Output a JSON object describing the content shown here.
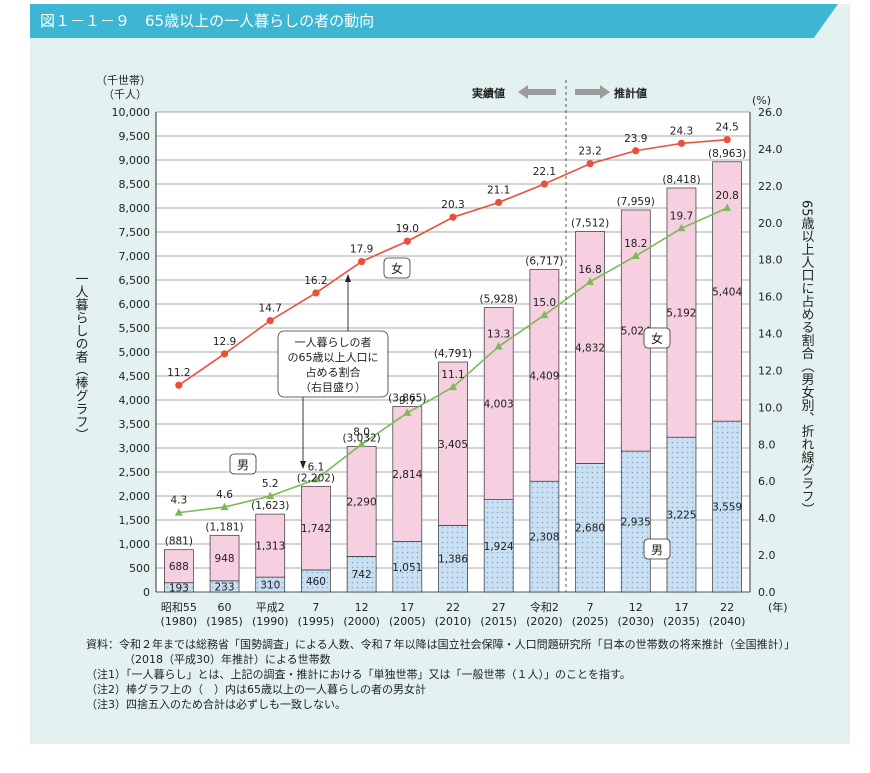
{
  "title": "図１－１－９　65歳以上の一人暮らしの者の動向",
  "chart_data": {
    "type": "bar",
    "categories": [
      {
        "era": "昭和55",
        "year": "(1980)"
      },
      {
        "era": "60",
        "year": "(1985)"
      },
      {
        "era": "平成2",
        "year": "(1990)"
      },
      {
        "era": "7",
        "year": "(1995)"
      },
      {
        "era": "12",
        "year": "(2000)"
      },
      {
        "era": "17",
        "year": "(2005)"
      },
      {
        "era": "22",
        "year": "(2010)"
      },
      {
        "era": "27",
        "year": "(2015)"
      },
      {
        "era": "令和2",
        "year": "(2020)"
      },
      {
        "era": "7",
        "year": "(2025)"
      },
      {
        "era": "12",
        "year": "(2030)"
      },
      {
        "era": "17",
        "year": "(2035)"
      },
      {
        "era": "22",
        "year": "(2040)"
      }
    ],
    "series": [
      {
        "name": "男",
        "values": [
          193,
          233,
          310,
          460,
          742,
          1051,
          1386,
          1924,
          2308,
          2680,
          2935,
          3225,
          3559
        ]
      },
      {
        "name": "女",
        "values": [
          688,
          948,
          1313,
          1742,
          2290,
          2814,
          3405,
          4003,
          4409,
          4832,
          5024,
          5192,
          5404
        ]
      }
    ],
    "total_labels": [
      "(881)",
      "(1,181)",
      "(1,623)",
      "(2,202)",
      "(3,032)",
      "(3,865)",
      "(4,791)",
      "(5,928)",
      "(6,717)",
      "(7,512)",
      "(7,959)",
      "(8,418)",
      "(8,963)"
    ],
    "male_labels": [
      "193",
      "233",
      "310",
      "460",
      "742",
      "1,051",
      "1,386",
      "1,924",
      "2,308",
      "2,680",
      "2,935",
      "3,225",
      "3,559"
    ],
    "female_labels": [
      "688",
      "948",
      "1,313",
      "1,742",
      "2,290",
      "2,814",
      "3,405",
      "4,003",
      "4,409",
      "4,832",
      "5,024",
      "5,192",
      "5,404"
    ],
    "line_series": [
      {
        "name": "女",
        "color": "#e8503a",
        "values": [
          11.2,
          12.9,
          14.7,
          16.2,
          17.9,
          19.0,
          20.3,
          21.1,
          22.1,
          23.2,
          23.9,
          24.3,
          24.5
        ]
      },
      {
        "name": "男",
        "color": "#7cb957",
        "values": [
          4.3,
          4.6,
          5.2,
          6.1,
          8.0,
          9.7,
          11.1,
          13.3,
          15.0,
          16.8,
          18.2,
          19.7,
          20.8
        ]
      }
    ],
    "left_axis": {
      "unit1": "（千世帯）",
      "unit2": "（千人）",
      "ylim": [
        0,
        10000
      ],
      "ticks": [
        "0",
        "500",
        "1,000",
        "1,500",
        "2,000",
        "2,500",
        "3,000",
        "3,500",
        "4,000",
        "4,500",
        "5,000",
        "5,500",
        "6,000",
        "6,500",
        "7,000",
        "7,500",
        "8,000",
        "8,500",
        "9,000",
        "9,500",
        "10,000"
      ]
    },
    "right_axis": {
      "unit": "(%)",
      "ylim": [
        0,
        26
      ],
      "ticks": [
        "0.0",
        "2.0",
        "4.0",
        "6.0",
        "8.0",
        "10.0",
        "12.0",
        "14.0",
        "16.0",
        "18.0",
        "20.0",
        "22.0",
        "24.0",
        "26.0"
      ]
    },
    "ylabel": "一人暮らしの者（棒グラフ）",
    "y2label": "65歳以上人口に占める割合（男女別、折れ線グラフ）",
    "x_unit": "(年)",
    "actual_label": "実績値",
    "projected_label": "推計値",
    "annotation": [
      "一人暮らしの者",
      "の65歳以上人口に",
      "占める割合",
      "（右目盛り）"
    ],
    "tag_female_line": "女",
    "tag_male_line": "男",
    "tag_female_bar": "女",
    "tag_male_bar": "男",
    "colors": {
      "male_bar": "#c9dff2",
      "female_bar": "#f6cfe0",
      "female_line": "#e8503a",
      "male_line": "#7cb957",
      "panel": "#e3f2f0",
      "title_bar": "#3cb6d3"
    }
  },
  "notes": [
    "資料：令和２年までは総務省「国勢調査」による人数、令和７年以降は国立社会保障・人口問題研究所「日本の世帯数の将来推計（全国推計）」",
    "（2018（平成30）年推計）による世帯数",
    "（注1）「一人暮らし」とは、上記の調査・推計における「単独世帯」又は「一般世帯（１人）」のことを指す。",
    "（注2）棒グラフ上の（　）内は65歳以上の一人暮らしの者の男女計",
    "（注3）四捨五入のため合計は必ずしも一致しない。"
  ]
}
